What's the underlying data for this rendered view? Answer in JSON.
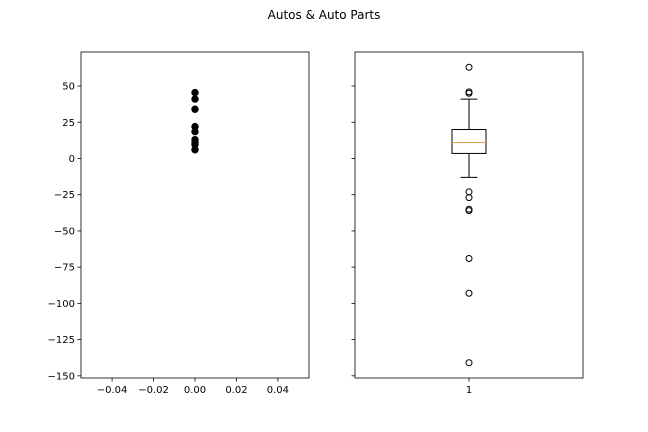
{
  "chart_data": {
    "title": "Autos & Auto Parts",
    "y_ticks": [
      50,
      25,
      0,
      -25,
      -50,
      -75,
      -100,
      -125,
      -150
    ],
    "y_tick_labels": [
      "50",
      "25",
      "0",
      "−25",
      "−50",
      "−75",
      "−100",
      "−125",
      "−150"
    ],
    "ylim": [
      -151.5,
      73.5
    ],
    "charts": [
      {
        "type": "scatter",
        "x_ticks": [
          -0.04,
          -0.02,
          0.0,
          0.02,
          0.04
        ],
        "x_tick_labels": [
          "−0.04",
          "−0.02",
          "0.00",
          "0.02",
          "0.04"
        ],
        "xlim": [
          -0.055,
          0.055
        ],
        "points": [
          {
            "x": 0,
            "y": 45.5
          },
          {
            "x": 0,
            "y": 41
          },
          {
            "x": 0,
            "y": 34
          },
          {
            "x": 0,
            "y": 22
          },
          {
            "x": 0,
            "y": 18.5
          },
          {
            "x": 0,
            "y": 13
          },
          {
            "x": 0,
            "y": 11
          },
          {
            "x": 0,
            "y": 9.5
          },
          {
            "x": 0,
            "y": 6
          }
        ],
        "marker_color": "#000000"
      },
      {
        "type": "box",
        "x_tick_labels": [
          "1"
        ],
        "box": {
          "q1": 3.5,
          "median": 11,
          "q3": 20,
          "whisker_low": -13,
          "whisker_high": 41,
          "outliers": [
            63,
            46,
            45,
            -23,
            -27,
            -35,
            -36,
            -69,
            -93,
            -141
          ]
        },
        "median_color": "#e0a040"
      }
    ]
  }
}
